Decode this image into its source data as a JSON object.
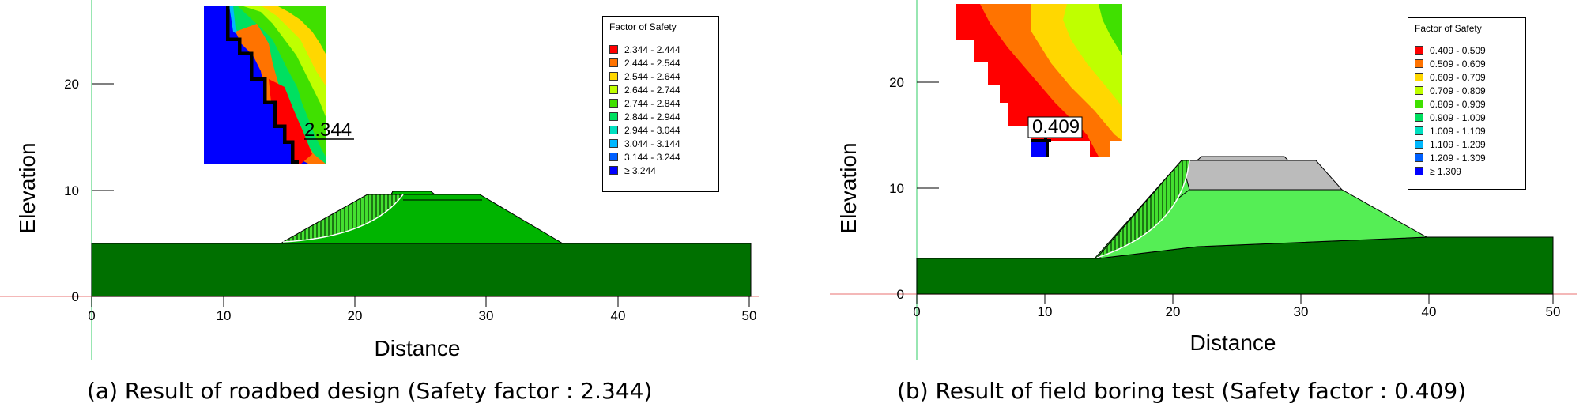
{
  "chart_data": [
    {
      "type": "slope-stability",
      "xlabel": "Distance",
      "ylabel": "Elevation",
      "xlim": [
        0,
        50
      ],
      "ylim": [
        0,
        28
      ],
      "x_ticks": [
        "0",
        "10",
        "20",
        "30",
        "40",
        "50"
      ],
      "y_ticks": [
        "0",
        "10",
        "20"
      ],
      "min_safety_factor": "2.344",
      "legend_title": "Factor of Safety",
      "legend": [
        {
          "label": "2.344 - 2.444",
          "color": "#ff0000"
        },
        {
          "label": "2.444 - 2.544",
          "color": "#ff7300"
        },
        {
          "label": "2.544 - 2.644",
          "color": "#ffd700"
        },
        {
          "label": "2.644 - 2.744",
          "color": "#bfff00"
        },
        {
          "label": "2.744 - 2.844",
          "color": "#40e000"
        },
        {
          "label": "2.844 - 2.944",
          "color": "#00e060"
        },
        {
          "label": "2.944 - 3.044",
          "color": "#00e0c0"
        },
        {
          "label": "3.044 - 3.144",
          "color": "#00b8ff"
        },
        {
          "label": "3.144 - 3.244",
          "color": "#0060ff"
        },
        {
          "label": "≥ 3.244",
          "color": "#0000ff"
        }
      ],
      "caption": "(a) Result of roadbed design (Safety factor : 2.344)"
    },
    {
      "type": "slope-stability",
      "xlabel": "Distance",
      "ylabel": "Elevation",
      "xlim": [
        0,
        50
      ],
      "ylim": [
        0,
        28
      ],
      "x_ticks": [
        "0",
        "10",
        "20",
        "30",
        "40",
        "50"
      ],
      "y_ticks": [
        "0",
        "10",
        "20"
      ],
      "min_safety_factor": "0.409",
      "legend_title": "Factor of Safety",
      "legend": [
        {
          "label": "0.409 - 0.509",
          "color": "#ff0000"
        },
        {
          "label": "0.509 - 0.609",
          "color": "#ff7300"
        },
        {
          "label": "0.609 - 0.709",
          "color": "#ffd700"
        },
        {
          "label": "0.709 - 0.809",
          "color": "#bfff00"
        },
        {
          "label": "0.809 - 0.909",
          "color": "#40e000"
        },
        {
          "label": "0.909 - 1.009",
          "color": "#00e060"
        },
        {
          "label": "1.009 - 1.109",
          "color": "#00e0c0"
        },
        {
          "label": "1.109 - 1.209",
          "color": "#00b8ff"
        },
        {
          "label": "1.209 - 1.309",
          "color": "#0060ff"
        },
        {
          "label": "≥ 1.309",
          "color": "#0000ff"
        }
      ],
      "caption": "(b) Result of field boring test (Safety factor : 0.409)"
    }
  ]
}
